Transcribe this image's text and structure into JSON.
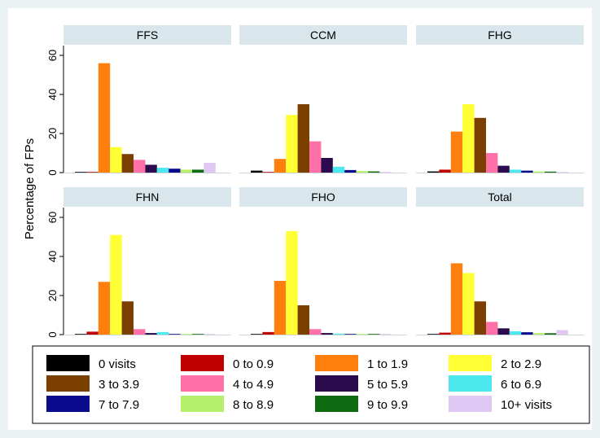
{
  "chart_data": {
    "type": "bar",
    "ylabel": "Percentage of FPs",
    "ylim": [
      0,
      65
    ],
    "yticks": [
      0,
      20,
      40,
      60
    ],
    "grid": false,
    "legend_position": "bottom",
    "categories": [
      "0 visits",
      "0 to 0.9",
      "1 to 1.9",
      "2 to 2.9",
      "3 to 3.9",
      "4 to 4.9",
      "5 to 5.9",
      "6 to 6.9",
      "7 to 7.9",
      "8 to 8.9",
      "9 to 9.9",
      "10+ visits"
    ],
    "colors": [
      "#000000",
      "#c00000",
      "#ff7f0e",
      "#ffff33",
      "#7b3f00",
      "#ff6fa8",
      "#2b0a4d",
      "#4de8ee",
      "#0a0a8c",
      "#b6f06a",
      "#0e6b12",
      "#e0c8f5"
    ],
    "panels": [
      {
        "title": "FFS",
        "values": [
          0,
          0,
          56,
          13,
          9.5,
          6.5,
          4,
          2.5,
          2,
          1.5,
          1.5,
          5
        ]
      },
      {
        "title": "CCM",
        "values": [
          1,
          0,
          7,
          29.5,
          35,
          16,
          7.5,
          3,
          1.3,
          0.8,
          0.6,
          0.3
        ]
      },
      {
        "title": "FHG",
        "values": [
          0.6,
          1.5,
          21,
          35,
          28,
          10,
          3.5,
          1.5,
          1,
          0.6,
          0.5,
          0.3
        ]
      },
      {
        "title": "FHN",
        "values": [
          0,
          1.5,
          27,
          51,
          17,
          2.8,
          0.8,
          1.3,
          0.2,
          0.1,
          0.1,
          0.3
        ]
      },
      {
        "title": "FHO",
        "values": [
          0.2,
          1.3,
          27.5,
          53,
          15,
          2.8,
          0.8,
          0.5,
          0.3,
          0.2,
          0.2,
          0.2
        ]
      },
      {
        "title": "Total",
        "values": [
          0.3,
          1,
          36.5,
          31.5,
          17,
          6.5,
          3.2,
          1.7,
          1.2,
          0.8,
          0.7,
          2.3
        ]
      }
    ]
  }
}
